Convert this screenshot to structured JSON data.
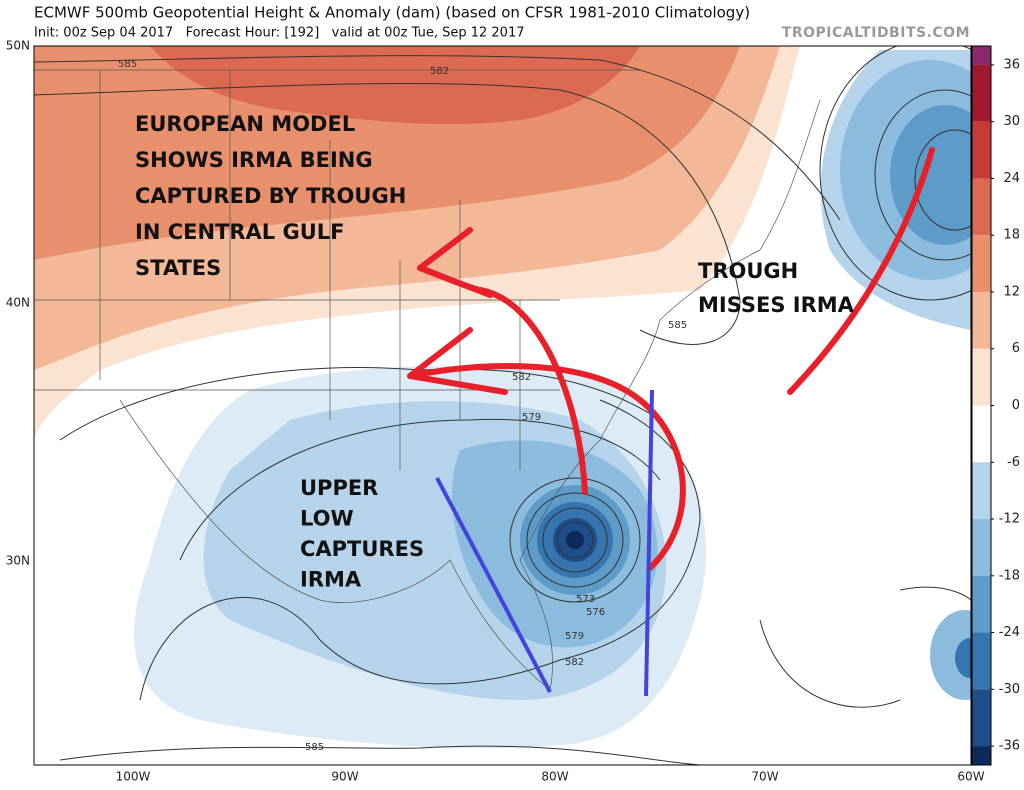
{
  "header": {
    "title": "ECMWF 500mb Geopotential Height & Anomaly (dam) (based on CFSR 1981-2010 Climatology)",
    "subtitle": "Init: 00z Sep 04 2017   Forecast Hour: [192]   valid at 00z Tue, Sep 12 2017",
    "credit": "TROPICALTIDBITS.COM"
  },
  "map": {
    "lat_labels": [
      "50N",
      "40N",
      "30N"
    ],
    "lon_labels": [
      "100W",
      "90W",
      "80W",
      "70W",
      "60W"
    ],
    "contour_labels": [
      "585",
      "582",
      "585",
      "582",
      "579",
      "573",
      "576",
      "579",
      "582",
      "585"
    ],
    "annotations": [
      {
        "lines": [
          "EUROPEAN MODEL",
          "SHOWS IRMA BEING",
          "CAPTURED BY TROUGH",
          "IN CENTRAL GULF",
          "STATES"
        ]
      },
      {
        "lines": [
          "TROUGH",
          "MISSES IRMA"
        ]
      },
      {
        "lines": [
          "UPPER",
          "LOW",
          "CAPTURES",
          "IRMA"
        ]
      }
    ]
  },
  "colorbar": {
    "lim": [
      -38,
      38
    ],
    "ticks": [
      36,
      30,
      24,
      18,
      12,
      6,
      0,
      -6,
      -12,
      -18,
      -24,
      -30,
      -36
    ],
    "colors": [
      "#8a2a6a",
      "#a01830",
      "#c83a38",
      "#dc6a50",
      "#e8906c",
      "#f2b898",
      "#fbe3d2",
      "#ffffff",
      "#b5d3ea",
      "#8cbcdd",
      "#5d9bc9",
      "#3775b0",
      "#1d4e8a",
      "#0e2a5a"
    ]
  }
}
